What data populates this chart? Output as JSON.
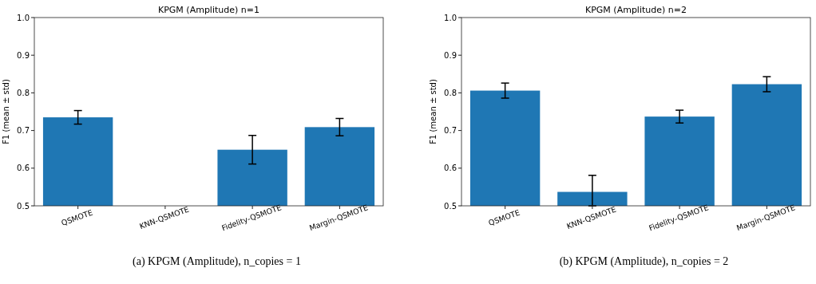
{
  "chart_data": [
    {
      "type": "bar",
      "title": "KPGM (Amplitude) n=1",
      "ylabel": "F1 (mean ± std)",
      "categories": [
        "QSMOTE",
        "KNN-QSMOTE",
        "Fidelity-QSMOTE",
        "Margin-QSMOTE"
      ],
      "values": [
        0.735,
        null,
        0.649,
        0.709
      ],
      "errors": [
        0.018,
        null,
        0.038,
        0.023
      ],
      "color": "#1f77b4",
      "ylim": [
        0.5,
        1.0
      ],
      "yticks": [
        {
          "value": 0.5,
          "label": "0.5"
        },
        {
          "value": 0.6,
          "label": "0.6"
        },
        {
          "value": 0.7,
          "label": "0.7"
        },
        {
          "value": 0.8,
          "label": "0.8"
        },
        {
          "value": 0.9,
          "label": "0.9"
        },
        {
          "value": 1.0,
          "label": "1.0"
        }
      ],
      "annotations": [
        "(a) KPGM (Amplitude), n_copies = 1"
      ]
    },
    {
      "type": "bar",
      "title": "KPGM (Amplitude) n=2",
      "ylabel": "F1 (mean ± std)",
      "categories": [
        "QSMOTE",
        "KNN-QSMOTE",
        "Fidelity-QSMOTE",
        "Margin-QSMOTE"
      ],
      "values": [
        0.806,
        0.537,
        0.737,
        0.823
      ],
      "errors": [
        0.02,
        [
          0.5,
          0.581
        ],
        0.017,
        0.02
      ],
      "color": "#1f77b4",
      "ylim": [
        0.5,
        1.0
      ],
      "yticks": [
        {
          "value": 0.5,
          "label": "0.5"
        },
        {
          "value": 0.6,
          "label": "0.6"
        },
        {
          "value": 0.7,
          "label": "0.7"
        },
        {
          "value": 0.8,
          "label": "0.8"
        },
        {
          "value": 0.9,
          "label": "0.9"
        },
        {
          "value": 1.0,
          "label": "1.0"
        }
      ],
      "annotations": [
        "(b) KPGM (Amplitude), n_copies = 2"
      ]
    }
  ]
}
